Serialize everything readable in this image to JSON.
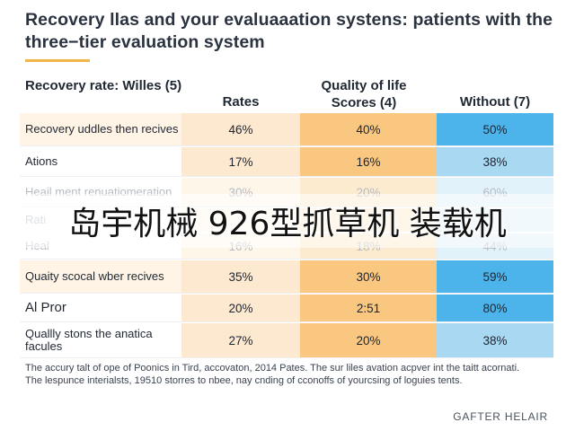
{
  "title": "Recovery llas and your evaluaaation systens: patients with the three−tier evaluation system",
  "chart_data": {
    "type": "table",
    "columns": [
      "Recovery rate: Willes (5)",
      "Rates",
      "Quality of life Scores (4)",
      "Without (7)"
    ],
    "rows": [
      {
        "label": "Recovery uddles then recives",
        "values": [
          "46%",
          "40%",
          "50%"
        ]
      },
      {
        "label": "Ations",
        "values": [
          "17%",
          "16%",
          "38%"
        ]
      },
      {
        "label": "Heail ment renuatiomeration",
        "values": [
          "30%",
          "20%",
          "60%"
        ]
      },
      {
        "label": "Rati",
        "values": [
          "",
          "",
          ""
        ]
      },
      {
        "label": "Heal",
        "values": [
          "16%",
          "18%",
          "44%"
        ]
      },
      {
        "label": "Quaity scocal wber recives",
        "values": [
          "35%",
          "30%",
          "59%"
        ]
      },
      {
        "label": "Al Pror",
        "values": [
          "20%",
          "2:51",
          "80%"
        ]
      },
      {
        "label": "Quallly stons the anatica facules",
        "values": [
          "27%",
          "20%",
          "38%"
        ]
      }
    ],
    "colors": {
      "rates_column": "#fde9d0",
      "quality_column": "#f9c77f",
      "without_column": "#a9d8f2",
      "without_highlight": "#4cb4ea",
      "row_band": "#fff4e5"
    }
  },
  "footnote": "The accury talt of ope of Poonics in Tird, accovaton, 2014 Pates. The sur liles avation acpver int the taitt acornati. The lespunce interialsts, 19510 storres to nbee, nay cnding of cconoffs of yourcsing of loguies tents.",
  "brand": "GAFTER HELAIR",
  "watermark": "岛宇机械 926型抓草机 装载机"
}
